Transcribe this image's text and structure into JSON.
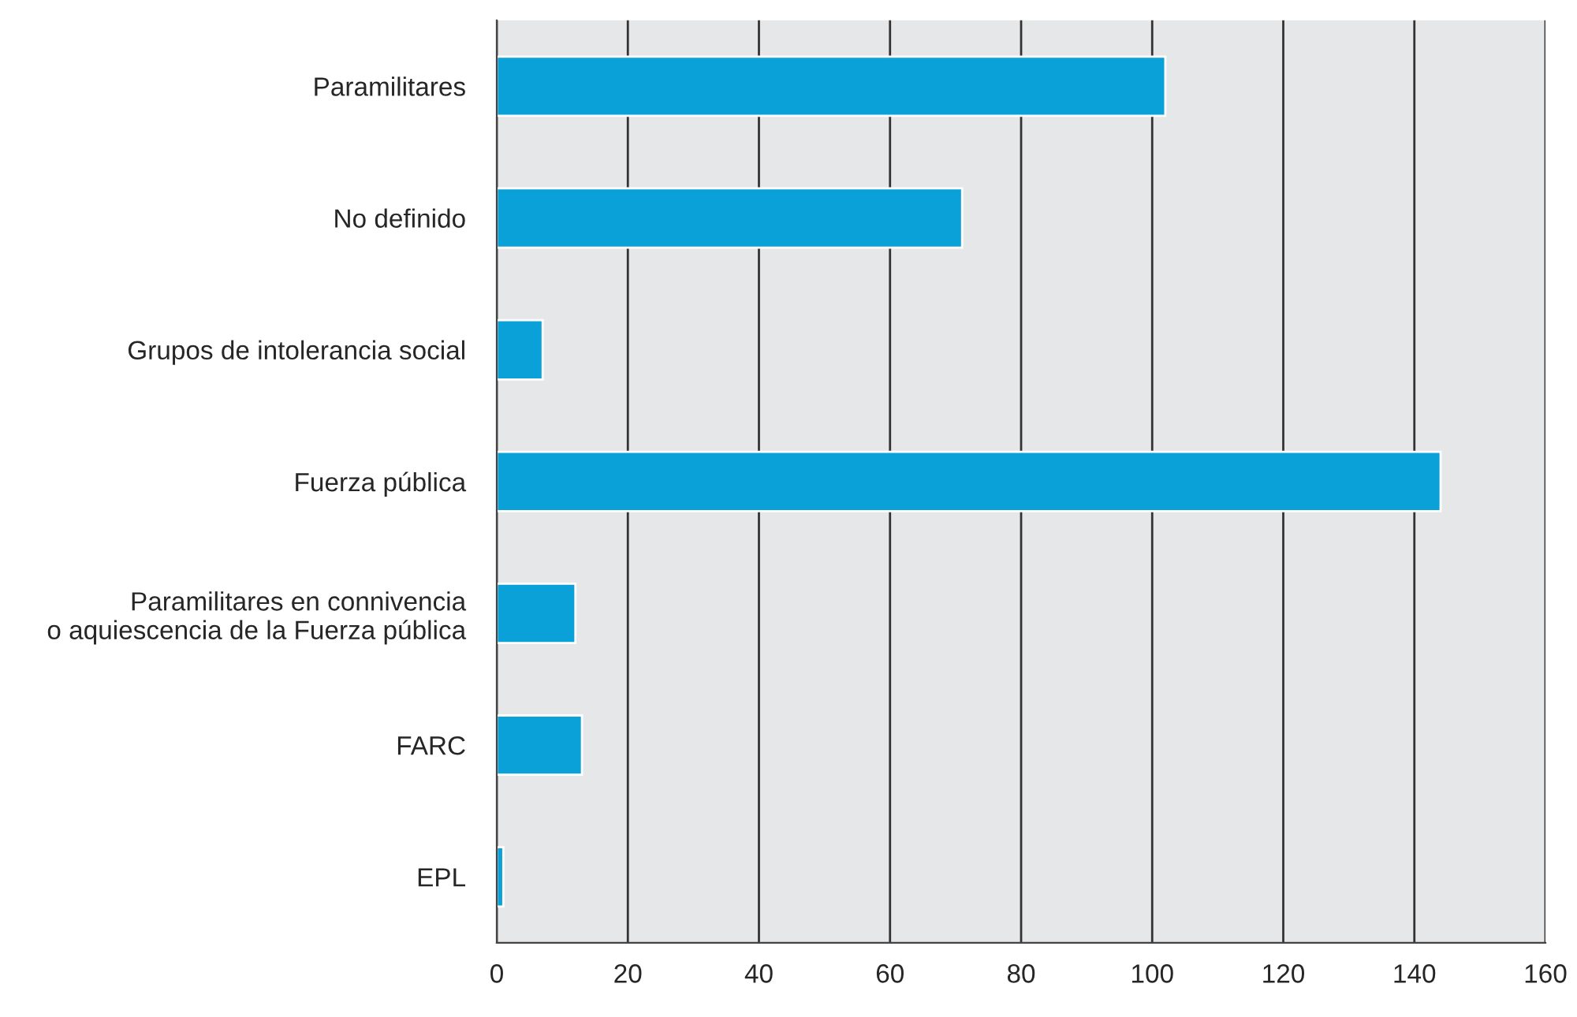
{
  "chart_data": {
    "type": "bar",
    "orientation": "horizontal",
    "categories": [
      "Paramilitares",
      "No definido",
      "Grupos de intolerancia social",
      "Fuerza pública",
      "Paramilitares en connivencia\no aquiescencia de la Fuerza pública",
      "FARC",
      "EPL"
    ],
    "values": [
      102,
      71,
      7,
      144,
      12,
      13,
      1
    ],
    "color": "#0aa0d8",
    "xlim": [
      0,
      160
    ],
    "xticks": [
      0,
      20,
      40,
      60,
      80,
      100,
      120,
      140,
      160
    ],
    "grid": "x"
  }
}
